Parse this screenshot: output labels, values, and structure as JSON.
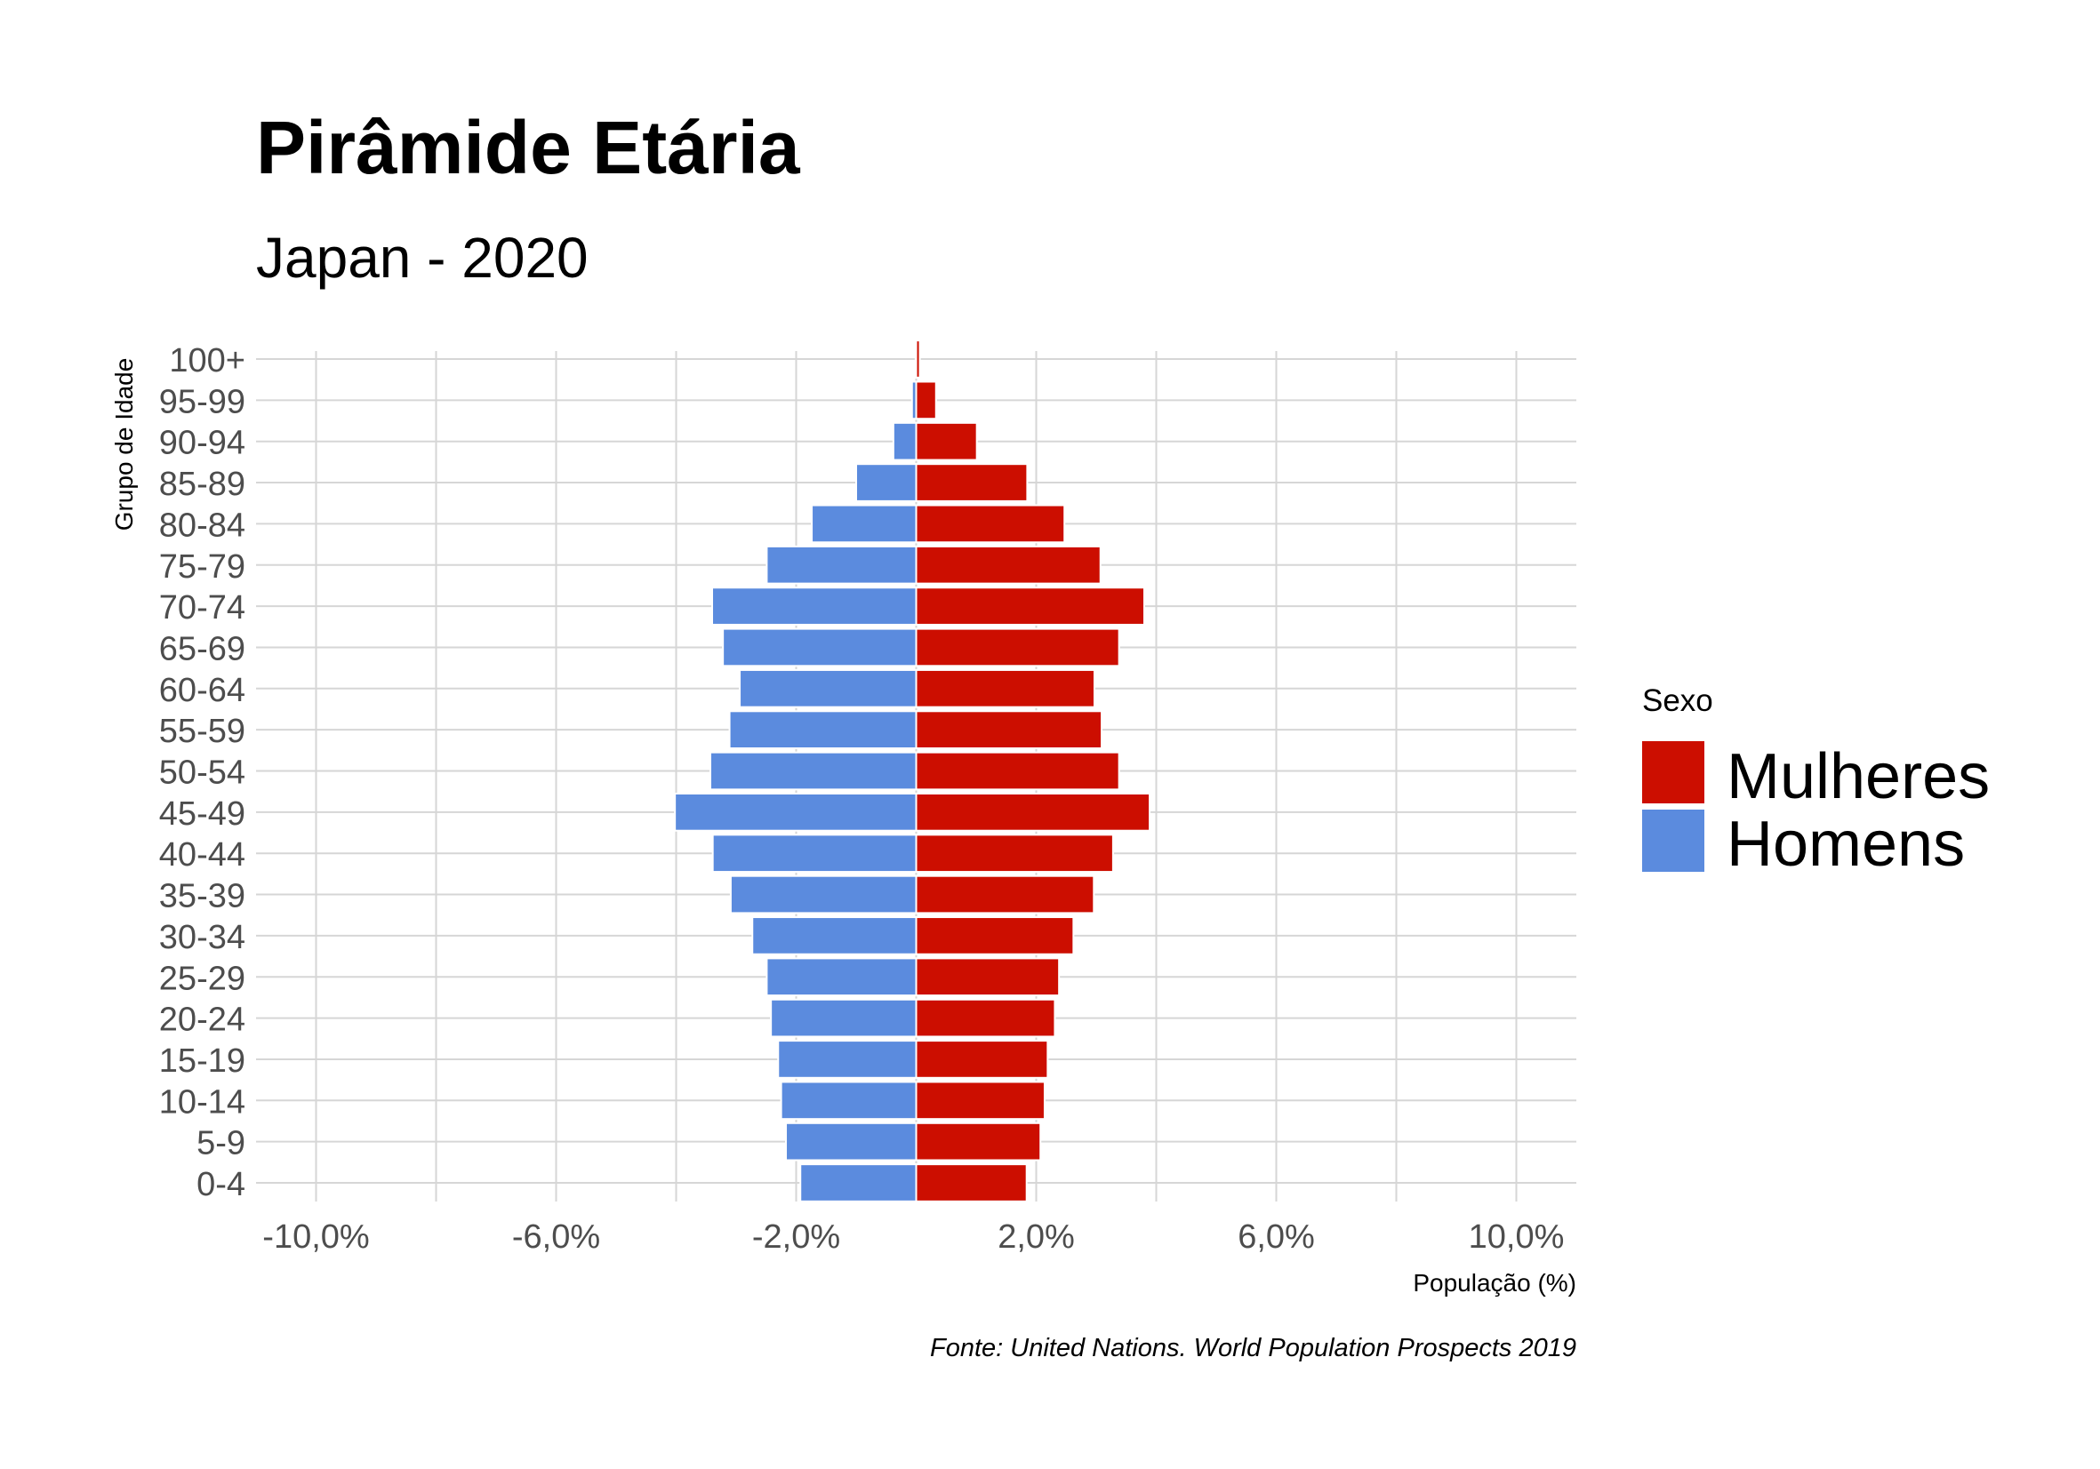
{
  "chart_data": {
    "type": "bar",
    "orientation": "horizontal",
    "title": "Pirâmide Etária",
    "subtitle": "Japan - 2020",
    "xlabel": "População (%)",
    "ylabel": "Grupo de Idade",
    "caption": "Fonte: United Nations. World Population Prospects 2019",
    "xlim": [
      -11,
      11
    ],
    "x_ticks": [
      -10,
      -6,
      -2,
      2,
      6,
      10
    ],
    "x_tick_labels": [
      "-10,0%",
      "-6,0%",
      "-2,0%",
      "2,0%",
      "6,0%",
      "10,0%"
    ],
    "grid": true,
    "categories": [
      "0-4",
      "5-9",
      "10-14",
      "15-19",
      "20-24",
      "25-29",
      "30-34",
      "35-39",
      "40-44",
      "45-49",
      "50-54",
      "55-59",
      "60-64",
      "65-69",
      "70-74",
      "75-79",
      "80-84",
      "85-89",
      "90-94",
      "95-99",
      "100+"
    ],
    "series": [
      {
        "name": "Mulheres",
        "color": "#CC0E00",
        "values": [
          1.84,
          2.07,
          2.14,
          2.19,
          2.31,
          2.38,
          2.62,
          2.96,
          3.28,
          3.89,
          3.38,
          3.09,
          2.97,
          3.38,
          3.8,
          3.07,
          2.47,
          1.85,
          1.01,
          0.33,
          0.06
        ]
      },
      {
        "name": "Homens",
        "color": "#5B8BDE",
        "values": [
          -1.93,
          -2.17,
          -2.25,
          -2.3,
          -2.42,
          -2.49,
          -2.73,
          -3.09,
          -3.39,
          -4.02,
          -3.43,
          -3.11,
          -2.94,
          -3.22,
          -3.4,
          -2.49,
          -1.74,
          -1.0,
          -0.38,
          -0.07,
          -0.01
        ]
      }
    ],
    "legend": {
      "title": "Sexo",
      "position": "right",
      "entries": [
        "Mulheres",
        "Homens"
      ]
    }
  }
}
